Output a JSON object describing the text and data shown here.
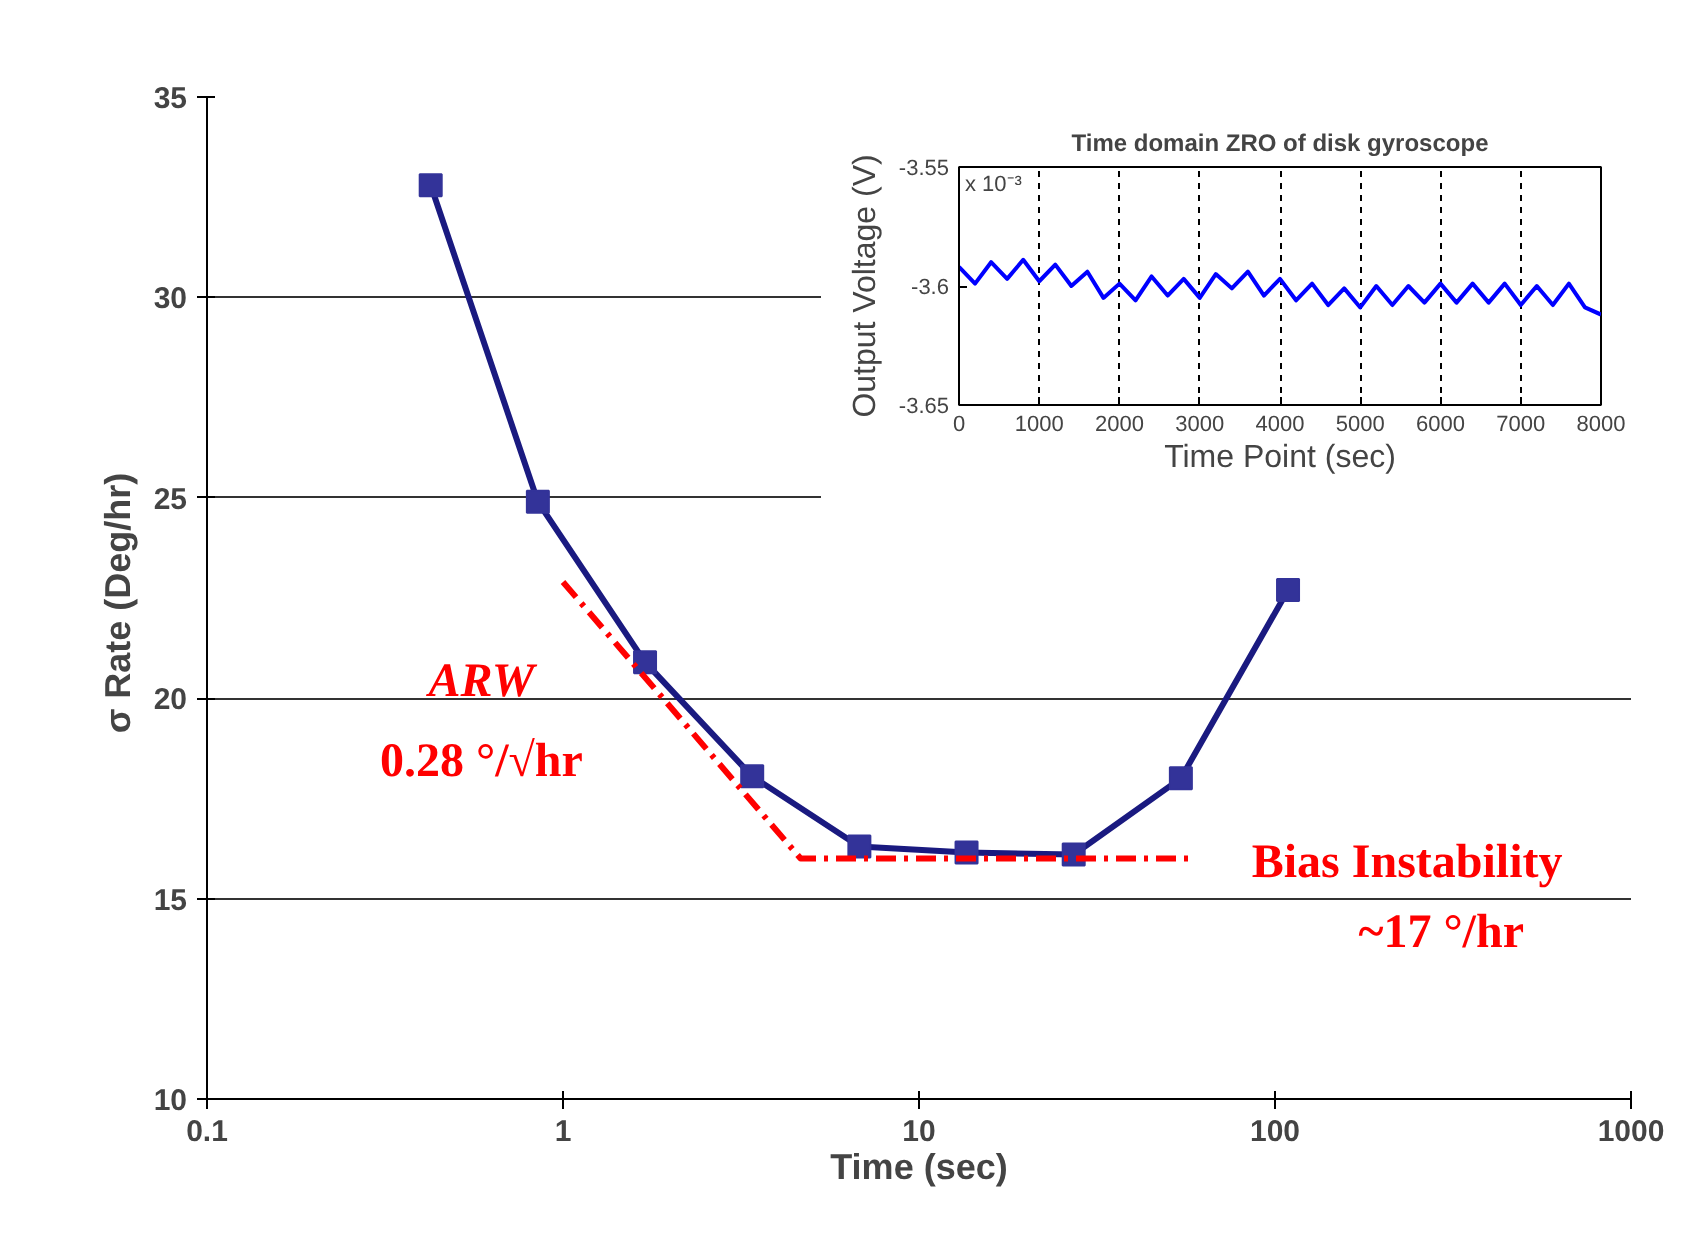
{
  "chart_data": [
    {
      "type": "line",
      "xlabel": "Time (sec)",
      "ylabel": "σ  Rate (Deg/hr)",
      "log": "x",
      "grid": "y",
      "marker": "square",
      "xlim": [
        0.1,
        1000
      ],
      "xticks": [
        0.1,
        1,
        10,
        100,
        1000
      ],
      "ylim": [
        10,
        35
      ],
      "yticks": [
        10,
        15,
        20,
        25,
        30,
        35
      ],
      "series": [
        {
          "color": "#1a1a80",
          "x": [
            0.425,
            0.85,
            1.7,
            3.4,
            6.8,
            13.6,
            27.2,
            54.4,
            108.8
          ],
          "values": [
            32.8,
            24.9,
            20.9,
            18.05,
            16.3,
            16.15,
            16.1,
            18.0,
            22.7
          ]
        },
        {
          "color": "#ff0000",
          "marker": "none",
          "line_style": "dashed",
          "x": [
            1.0,
            4.65,
            58
          ],
          "values": [
            22.9,
            16.0,
            16.0
          ]
        }
      ],
      "annotations": [
        "ARW",
        "0.28 °/√hr",
        "Bias Instability",
        "~17 °/hr"
      ]
    },
    {
      "type": "line",
      "title": "Time domain ZRO of disk gyroscope",
      "xlabel": "Time Point (sec)",
      "ylabel": "Output Voltage (V)",
      "grid": "x",
      "xlim": [
        0,
        8000
      ],
      "xticks": [
        0,
        1000,
        2000,
        3000,
        4000,
        5000,
        6000,
        7000,
        8000
      ],
      "ylim": [
        -3.65,
        -3.55
      ],
      "yticks": [
        -3.65,
        -3.6,
        -3.55
      ],
      "annotations": [
        "x 10⁻³"
      ],
      "series": [
        {
          "color": "#0000ff",
          "x": [
            0,
            200,
            400,
            600,
            800,
            1000,
            1200,
            1400,
            1600,
            1800,
            2000,
            2200,
            2400,
            2600,
            2800,
            3000,
            3200,
            3400,
            3600,
            3800,
            4000,
            4200,
            4400,
            4600,
            4800,
            5000,
            5200,
            5400,
            5600,
            5800,
            6000,
            6200,
            6400,
            6600,
            6800,
            7000,
            7200,
            7400,
            7600,
            7800,
            8000
          ],
          "values": [
            -3.592,
            -3.599,
            -3.59,
            -3.597,
            -3.589,
            -3.598,
            -3.591,
            -3.6,
            -3.594,
            -3.605,
            -3.599,
            -3.606,
            -3.596,
            -3.604,
            -3.597,
            -3.605,
            -3.595,
            -3.601,
            -3.594,
            -3.604,
            -3.597,
            -3.606,
            -3.599,
            -3.608,
            -3.601,
            -3.609,
            -3.6,
            -3.608,
            -3.6,
            -3.607,
            -3.599,
            -3.607,
            -3.599,
            -3.607,
            -3.599,
            -3.608,
            -3.6,
            -3.608,
            -3.599,
            -3.609,
            -3.612
          ]
        }
      ]
    }
  ]
}
